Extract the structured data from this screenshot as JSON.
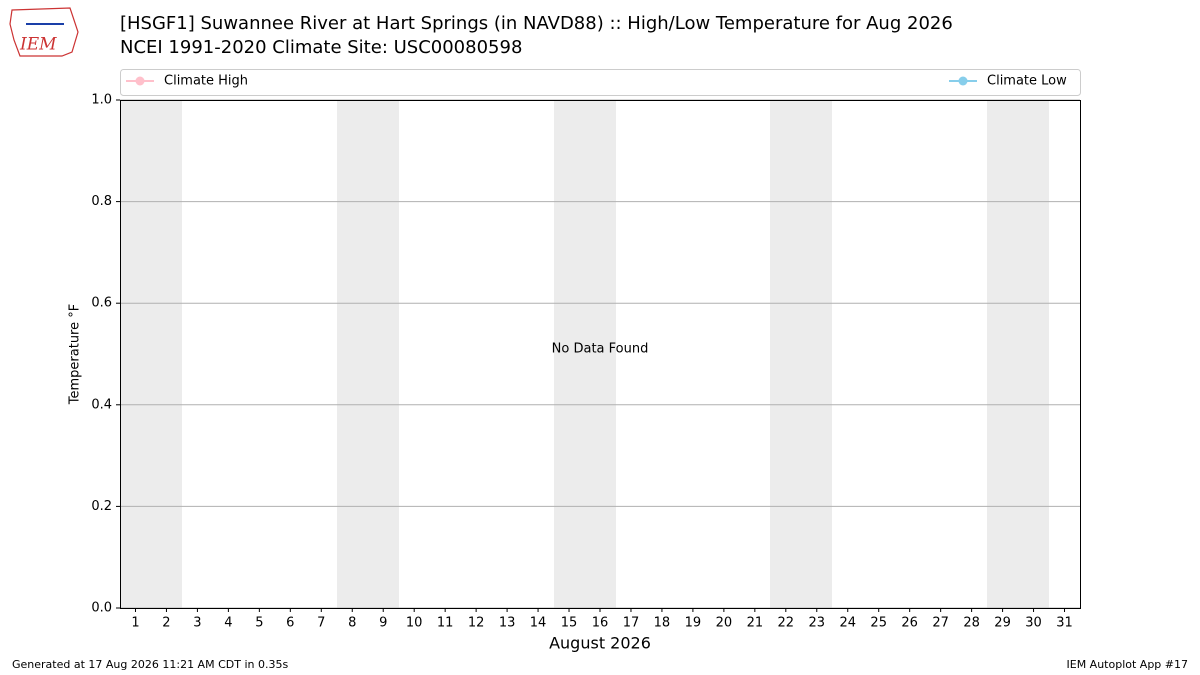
{
  "logo_text": "IEM",
  "chart_data": {
    "type": "line",
    "title": "[HSGF1] Suwannee River at Hart Springs (in NAVD88) :: High/Low Temperature for Aug 2026",
    "subtitle": "NCEI 1991-2020 Climate Site: USC00080598",
    "xlabel": "August 2026",
    "ylabel": "Temperature °F",
    "annotation": "No Data Found",
    "xlim": [
      0.5,
      31.5
    ],
    "xticks": [
      1,
      2,
      3,
      4,
      5,
      6,
      7,
      8,
      9,
      10,
      11,
      12,
      13,
      14,
      15,
      16,
      17,
      18,
      19,
      20,
      21,
      22,
      23,
      24,
      25,
      26,
      27,
      28,
      29,
      30,
      31
    ],
    "ylim": [
      0,
      1
    ],
    "yticks": [
      {
        "value": 0,
        "label": "0.0"
      },
      {
        "value": 0.2,
        "label": "0.2"
      },
      {
        "value": 0.4,
        "label": "0.4"
      },
      {
        "value": 0.6,
        "label": "0.6"
      },
      {
        "value": 0.8,
        "label": "0.8"
      },
      {
        "value": 1,
        "label": "1.0"
      }
    ],
    "grid": true,
    "series": [
      {
        "name": "Climate High",
        "color": "#ffc0cb",
        "values": []
      },
      {
        "name": "Climate Low",
        "color": "#87ceeb",
        "values": []
      }
    ],
    "footer_left": "Generated at 17 Aug 2026 11:21 AM CDT in 0.35s",
    "footer_right": "IEM Autoplot App #17"
  }
}
